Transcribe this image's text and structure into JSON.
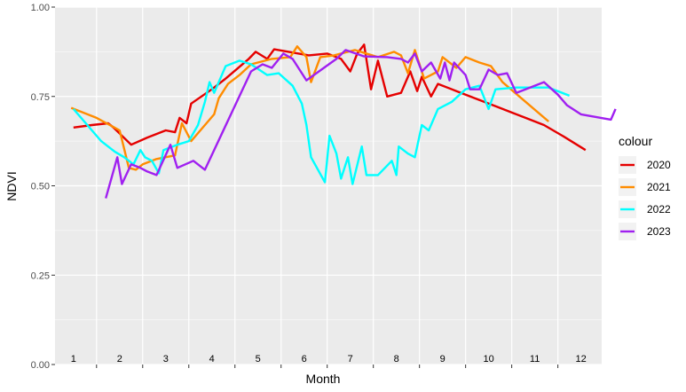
{
  "chart_data": {
    "type": "line",
    "xlabel": "Month",
    "ylabel": "NDVI",
    "xlim": [
      0.6,
      12.45
    ],
    "ylim": [
      0,
      1
    ],
    "yticks": [
      0.0,
      0.25,
      0.5,
      0.75,
      1.0
    ],
    "ytick_labels": [
      "0.00",
      "0.25",
      "0.50",
      "0.75",
      "1.00"
    ],
    "month_labels": [
      "1",
      "2",
      "3",
      "4",
      "5",
      "6",
      "7",
      "8",
      "9",
      "10",
      "11",
      "12"
    ],
    "legend_title": "colour",
    "legend_position": "right",
    "grid": true,
    "panel_background": "#EBEBEB",
    "series": [
      {
        "name": "2020",
        "color": "#E50000",
        "points": [
          [
            1.0,
            0.663
          ],
          [
            1.4,
            0.67
          ],
          [
            1.75,
            0.675
          ],
          [
            1.85,
            0.665
          ],
          [
            2.25,
            0.615
          ],
          [
            2.6,
            0.635
          ],
          [
            3.0,
            0.655
          ],
          [
            3.2,
            0.65
          ],
          [
            3.3,
            0.69
          ],
          [
            3.45,
            0.675
          ],
          [
            3.55,
            0.73
          ],
          [
            4.0,
            0.77
          ],
          [
            4.3,
            0.8
          ],
          [
            4.8,
            0.855
          ],
          [
            4.95,
            0.875
          ],
          [
            5.2,
            0.855
          ],
          [
            5.35,
            0.882
          ],
          [
            6.1,
            0.865
          ],
          [
            6.5,
            0.87
          ],
          [
            6.8,
            0.855
          ],
          [
            7.0,
            0.82
          ],
          [
            7.15,
            0.87
          ],
          [
            7.3,
            0.895
          ],
          [
            7.45,
            0.77
          ],
          [
            7.6,
            0.85
          ],
          [
            7.8,
            0.75
          ],
          [
            8.1,
            0.76
          ],
          [
            8.3,
            0.82
          ],
          [
            8.45,
            0.765
          ],
          [
            8.55,
            0.805
          ],
          [
            8.75,
            0.75
          ],
          [
            8.9,
            0.785
          ],
          [
            9.3,
            0.765
          ],
          [
            9.7,
            0.745
          ],
          [
            10.2,
            0.72
          ],
          [
            10.8,
            0.69
          ],
          [
            11.2,
            0.67
          ],
          [
            11.6,
            0.64
          ],
          [
            12.1,
            0.6
          ]
        ]
      },
      {
        "name": "2021",
        "color": "#FF8C00",
        "points": [
          [
            0.95,
            0.718
          ],
          [
            1.5,
            0.69
          ],
          [
            2.0,
            0.655
          ],
          [
            2.2,
            0.55
          ],
          [
            2.35,
            0.545
          ],
          [
            2.5,
            0.56
          ],
          [
            2.8,
            0.575
          ],
          [
            3.2,
            0.585
          ],
          [
            3.35,
            0.675
          ],
          [
            3.55,
            0.625
          ],
          [
            4.05,
            0.7
          ],
          [
            4.15,
            0.745
          ],
          [
            4.35,
            0.785
          ],
          [
            4.6,
            0.81
          ],
          [
            4.85,
            0.84
          ],
          [
            5.3,
            0.855
          ],
          [
            5.7,
            0.86
          ],
          [
            5.85,
            0.89
          ],
          [
            6.05,
            0.86
          ],
          [
            6.15,
            0.79
          ],
          [
            6.35,
            0.86
          ],
          [
            6.65,
            0.865
          ],
          [
            7.1,
            0.88
          ],
          [
            7.6,
            0.86
          ],
          [
            7.95,
            0.875
          ],
          [
            8.1,
            0.865
          ],
          [
            8.25,
            0.815
          ],
          [
            8.4,
            0.88
          ],
          [
            8.6,
            0.8
          ],
          [
            8.9,
            0.82
          ],
          [
            9.0,
            0.86
          ],
          [
            9.3,
            0.83
          ],
          [
            9.5,
            0.86
          ],
          [
            9.8,
            0.845
          ],
          [
            10.05,
            0.835
          ],
          [
            10.3,
            0.79
          ],
          [
            11.3,
            0.68
          ]
        ]
      },
      {
        "name": "2022",
        "color": "#00FFFF",
        "points": [
          [
            1.0,
            0.715
          ],
          [
            1.6,
            0.625
          ],
          [
            1.9,
            0.595
          ],
          [
            2.1,
            0.58
          ],
          [
            2.3,
            0.56
          ],
          [
            2.45,
            0.6
          ],
          [
            2.55,
            0.58
          ],
          [
            2.7,
            0.57
          ],
          [
            2.85,
            0.535
          ],
          [
            2.95,
            0.6
          ],
          [
            3.25,
            0.615
          ],
          [
            3.5,
            0.625
          ],
          [
            3.7,
            0.67
          ],
          [
            3.85,
            0.735
          ],
          [
            3.95,
            0.79
          ],
          [
            4.05,
            0.76
          ],
          [
            4.3,
            0.835
          ],
          [
            4.6,
            0.85
          ],
          [
            4.85,
            0.84
          ],
          [
            5.2,
            0.81
          ],
          [
            5.45,
            0.815
          ],
          [
            5.75,
            0.78
          ],
          [
            5.95,
            0.73
          ],
          [
            6.05,
            0.67
          ],
          [
            6.15,
            0.58
          ],
          [
            6.45,
            0.51
          ],
          [
            6.55,
            0.64
          ],
          [
            6.7,
            0.59
          ],
          [
            6.8,
            0.52
          ],
          [
            6.95,
            0.58
          ],
          [
            7.05,
            0.505
          ],
          [
            7.25,
            0.61
          ],
          [
            7.35,
            0.53
          ],
          [
            7.6,
            0.53
          ],
          [
            7.9,
            0.57
          ],
          [
            8.0,
            0.53
          ],
          [
            8.05,
            0.61
          ],
          [
            8.25,
            0.59
          ],
          [
            8.4,
            0.58
          ],
          [
            8.55,
            0.67
          ],
          [
            8.7,
            0.655
          ],
          [
            8.9,
            0.715
          ],
          [
            9.2,
            0.735
          ],
          [
            9.5,
            0.77
          ],
          [
            9.8,
            0.78
          ],
          [
            10.0,
            0.715
          ],
          [
            10.15,
            0.77
          ],
          [
            10.6,
            0.775
          ],
          [
            11.3,
            0.775
          ],
          [
            11.75,
            0.752
          ]
        ]
      },
      {
        "name": "2023",
        "color": "#A020F0",
        "points": [
          [
            1.7,
            0.465
          ],
          [
            1.95,
            0.58
          ],
          [
            2.05,
            0.505
          ],
          [
            2.25,
            0.56
          ],
          [
            2.45,
            0.55
          ],
          [
            2.6,
            0.54
          ],
          [
            2.8,
            0.53
          ],
          [
            3.1,
            0.615
          ],
          [
            3.25,
            0.55
          ],
          [
            3.6,
            0.57
          ],
          [
            3.85,
            0.545
          ],
          [
            4.85,
            0.82
          ],
          [
            5.1,
            0.84
          ],
          [
            5.3,
            0.83
          ],
          [
            5.55,
            0.87
          ],
          [
            5.75,
            0.855
          ],
          [
            6.05,
            0.795
          ],
          [
            6.7,
            0.855
          ],
          [
            6.9,
            0.88
          ],
          [
            7.3,
            0.862
          ],
          [
            7.8,
            0.86
          ],
          [
            8.1,
            0.855
          ],
          [
            8.25,
            0.845
          ],
          [
            8.4,
            0.87
          ],
          [
            8.55,
            0.82
          ],
          [
            8.75,
            0.845
          ],
          [
            8.95,
            0.8
          ],
          [
            9.05,
            0.845
          ],
          [
            9.15,
            0.795
          ],
          [
            9.25,
            0.845
          ],
          [
            9.5,
            0.81
          ],
          [
            9.6,
            0.77
          ],
          [
            9.8,
            0.77
          ],
          [
            10.0,
            0.825
          ],
          [
            10.2,
            0.81
          ],
          [
            10.4,
            0.815
          ],
          [
            10.6,
            0.76
          ],
          [
            11.2,
            0.79
          ],
          [
            11.5,
            0.755
          ],
          [
            11.7,
            0.725
          ],
          [
            12.0,
            0.7
          ],
          [
            12.65,
            0.685
          ],
          [
            12.75,
            0.715
          ]
        ]
      }
    ]
  }
}
